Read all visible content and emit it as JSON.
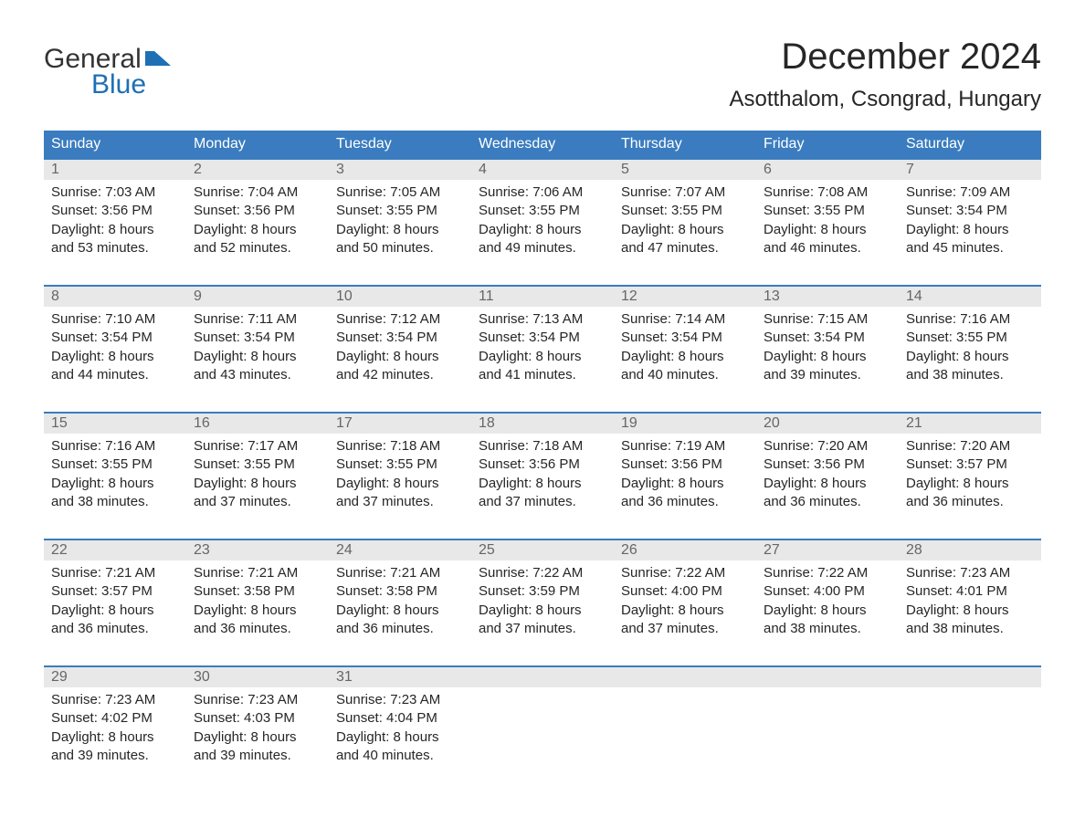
{
  "logo": {
    "text_top": "General",
    "text_bottom": "Blue",
    "top_color": "#333333",
    "bottom_color": "#1f6fb5",
    "icon_color": "#1f6fb5"
  },
  "title": "December 2024",
  "location": "Asotthalom, Csongrad, Hungary",
  "colors": {
    "header_bg": "#3a7cbf",
    "header_text": "#ffffff",
    "daynum_bg": "#e8e8e8",
    "daynum_text": "#666666",
    "body_text": "#262626",
    "week_border": "#3a7cbf",
    "page_bg": "#ffffff"
  },
  "typography": {
    "title_fontsize": 40,
    "location_fontsize": 24,
    "header_fontsize": 16,
    "daynum_fontsize": 16,
    "cell_fontsize": 15,
    "logo_fontsize": 30
  },
  "day_headers": [
    "Sunday",
    "Monday",
    "Tuesday",
    "Wednesday",
    "Thursday",
    "Friday",
    "Saturday"
  ],
  "labels": {
    "sunrise": "Sunrise:",
    "sunset": "Sunset:",
    "daylight": "Daylight:"
  },
  "weeks": [
    {
      "days": [
        {
          "num": "1",
          "sunrise": "7:03 AM",
          "sunset": "3:56 PM",
          "daylight1": "8 hours",
          "daylight2": "and 53 minutes."
        },
        {
          "num": "2",
          "sunrise": "7:04 AM",
          "sunset": "3:56 PM",
          "daylight1": "8 hours",
          "daylight2": "and 52 minutes."
        },
        {
          "num": "3",
          "sunrise": "7:05 AM",
          "sunset": "3:55 PM",
          "daylight1": "8 hours",
          "daylight2": "and 50 minutes."
        },
        {
          "num": "4",
          "sunrise": "7:06 AM",
          "sunset": "3:55 PM",
          "daylight1": "8 hours",
          "daylight2": "and 49 minutes."
        },
        {
          "num": "5",
          "sunrise": "7:07 AM",
          "sunset": "3:55 PM",
          "daylight1": "8 hours",
          "daylight2": "and 47 minutes."
        },
        {
          "num": "6",
          "sunrise": "7:08 AM",
          "sunset": "3:55 PM",
          "daylight1": "8 hours",
          "daylight2": "and 46 minutes."
        },
        {
          "num": "7",
          "sunrise": "7:09 AM",
          "sunset": "3:54 PM",
          "daylight1": "8 hours",
          "daylight2": "and 45 minutes."
        }
      ]
    },
    {
      "days": [
        {
          "num": "8",
          "sunrise": "7:10 AM",
          "sunset": "3:54 PM",
          "daylight1": "8 hours",
          "daylight2": "and 44 minutes."
        },
        {
          "num": "9",
          "sunrise": "7:11 AM",
          "sunset": "3:54 PM",
          "daylight1": "8 hours",
          "daylight2": "and 43 minutes."
        },
        {
          "num": "10",
          "sunrise": "7:12 AM",
          "sunset": "3:54 PM",
          "daylight1": "8 hours",
          "daylight2": "and 42 minutes."
        },
        {
          "num": "11",
          "sunrise": "7:13 AM",
          "sunset": "3:54 PM",
          "daylight1": "8 hours",
          "daylight2": "and 41 minutes."
        },
        {
          "num": "12",
          "sunrise": "7:14 AM",
          "sunset": "3:54 PM",
          "daylight1": "8 hours",
          "daylight2": "and 40 minutes."
        },
        {
          "num": "13",
          "sunrise": "7:15 AM",
          "sunset": "3:54 PM",
          "daylight1": "8 hours",
          "daylight2": "and 39 minutes."
        },
        {
          "num": "14",
          "sunrise": "7:16 AM",
          "sunset": "3:55 PM",
          "daylight1": "8 hours",
          "daylight2": "and 38 minutes."
        }
      ]
    },
    {
      "days": [
        {
          "num": "15",
          "sunrise": "7:16 AM",
          "sunset": "3:55 PM",
          "daylight1": "8 hours",
          "daylight2": "and 38 minutes."
        },
        {
          "num": "16",
          "sunrise": "7:17 AM",
          "sunset": "3:55 PM",
          "daylight1": "8 hours",
          "daylight2": "and 37 minutes."
        },
        {
          "num": "17",
          "sunrise": "7:18 AM",
          "sunset": "3:55 PM",
          "daylight1": "8 hours",
          "daylight2": "and 37 minutes."
        },
        {
          "num": "18",
          "sunrise": "7:18 AM",
          "sunset": "3:56 PM",
          "daylight1": "8 hours",
          "daylight2": "and 37 minutes."
        },
        {
          "num": "19",
          "sunrise": "7:19 AM",
          "sunset": "3:56 PM",
          "daylight1": "8 hours",
          "daylight2": "and 36 minutes."
        },
        {
          "num": "20",
          "sunrise": "7:20 AM",
          "sunset": "3:56 PM",
          "daylight1": "8 hours",
          "daylight2": "and 36 minutes."
        },
        {
          "num": "21",
          "sunrise": "7:20 AM",
          "sunset": "3:57 PM",
          "daylight1": "8 hours",
          "daylight2": "and 36 minutes."
        }
      ]
    },
    {
      "days": [
        {
          "num": "22",
          "sunrise": "7:21 AM",
          "sunset": "3:57 PM",
          "daylight1": "8 hours",
          "daylight2": "and 36 minutes."
        },
        {
          "num": "23",
          "sunrise": "7:21 AM",
          "sunset": "3:58 PM",
          "daylight1": "8 hours",
          "daylight2": "and 36 minutes."
        },
        {
          "num": "24",
          "sunrise": "7:21 AM",
          "sunset": "3:58 PM",
          "daylight1": "8 hours",
          "daylight2": "and 36 minutes."
        },
        {
          "num": "25",
          "sunrise": "7:22 AM",
          "sunset": "3:59 PM",
          "daylight1": "8 hours",
          "daylight2": "and 37 minutes."
        },
        {
          "num": "26",
          "sunrise": "7:22 AM",
          "sunset": "4:00 PM",
          "daylight1": "8 hours",
          "daylight2": "and 37 minutes."
        },
        {
          "num": "27",
          "sunrise": "7:22 AM",
          "sunset": "4:00 PM",
          "daylight1": "8 hours",
          "daylight2": "and 38 minutes."
        },
        {
          "num": "28",
          "sunrise": "7:23 AM",
          "sunset": "4:01 PM",
          "daylight1": "8 hours",
          "daylight2": "and 38 minutes."
        }
      ]
    },
    {
      "days": [
        {
          "num": "29",
          "sunrise": "7:23 AM",
          "sunset": "4:02 PM",
          "daylight1": "8 hours",
          "daylight2": "and 39 minutes."
        },
        {
          "num": "30",
          "sunrise": "7:23 AM",
          "sunset": "4:03 PM",
          "daylight1": "8 hours",
          "daylight2": "and 39 minutes."
        },
        {
          "num": "31",
          "sunrise": "7:23 AM",
          "sunset": "4:04 PM",
          "daylight1": "8 hours",
          "daylight2": "and 40 minutes."
        },
        {
          "num": "",
          "sunrise": "",
          "sunset": "",
          "daylight1": "",
          "daylight2": ""
        },
        {
          "num": "",
          "sunrise": "",
          "sunset": "",
          "daylight1": "",
          "daylight2": ""
        },
        {
          "num": "",
          "sunrise": "",
          "sunset": "",
          "daylight1": "",
          "daylight2": ""
        },
        {
          "num": "",
          "sunrise": "",
          "sunset": "",
          "daylight1": "",
          "daylight2": ""
        }
      ]
    }
  ]
}
